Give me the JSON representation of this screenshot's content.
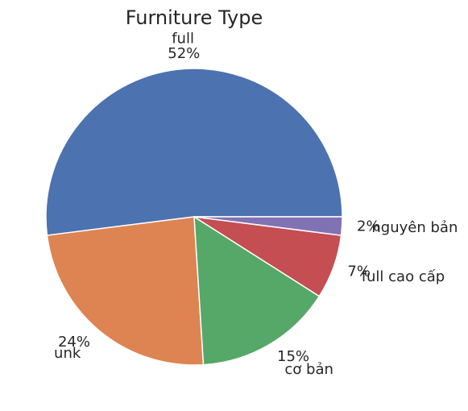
{
  "chart_data": {
    "type": "pie",
    "title": "Furniture Type",
    "categories": [
      "full",
      "unk",
      "cơ bản",
      "full cao cấp",
      "nguyên bản"
    ],
    "values": [
      52,
      24,
      15,
      7,
      2
    ],
    "percent_labels": [
      "52%",
      "24%",
      "15%",
      "7%",
      "2%"
    ],
    "colors": [
      "#4c72b0",
      "#dd8452",
      "#55a868",
      "#c44e52",
      "#8172b3"
    ],
    "start_angle_deg": 0,
    "direction": "counterclockwise"
  }
}
